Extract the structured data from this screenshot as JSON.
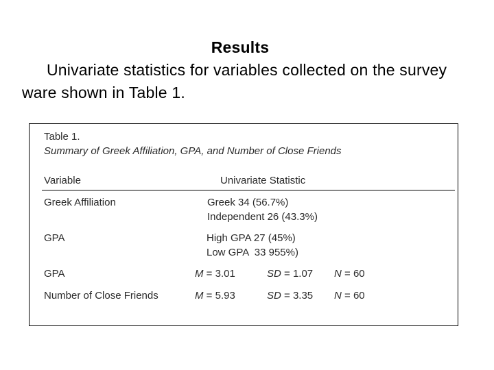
{
  "slide": {
    "heading": "Results",
    "body": "Univariate statistics for variables collected on the survey ware shown in Table 1."
  },
  "table": {
    "label": "Table 1.",
    "caption": "Summary of Greek Affiliation, GPA, and Number of Close Friends",
    "headers": {
      "variable": "Variable",
      "statistic": "Univariate Statistic"
    },
    "rows": [
      {
        "variable": "Greek Affiliation",
        "lines": [
          "Greek 34 (56.7%)",
          "Independent 26 (43.3%)"
        ]
      },
      {
        "variable": "GPA",
        "lines": [
          "High GPA 27 (45%)",
          "Low GPA  33 955%)"
        ]
      },
      {
        "variable": "GPA",
        "m_label": "M",
        "m_value": "= 3.01",
        "sd_label": "SD",
        "sd_value": "= 1.07",
        "n_label": "N",
        "n_value": "= 60"
      },
      {
        "variable": "Number of Close Friends",
        "m_label": "M",
        "m_value": "= 5.93",
        "sd_label": "SD",
        "sd_value": "= 3.35",
        "n_label": "N",
        "n_value": "= 60"
      }
    ]
  }
}
